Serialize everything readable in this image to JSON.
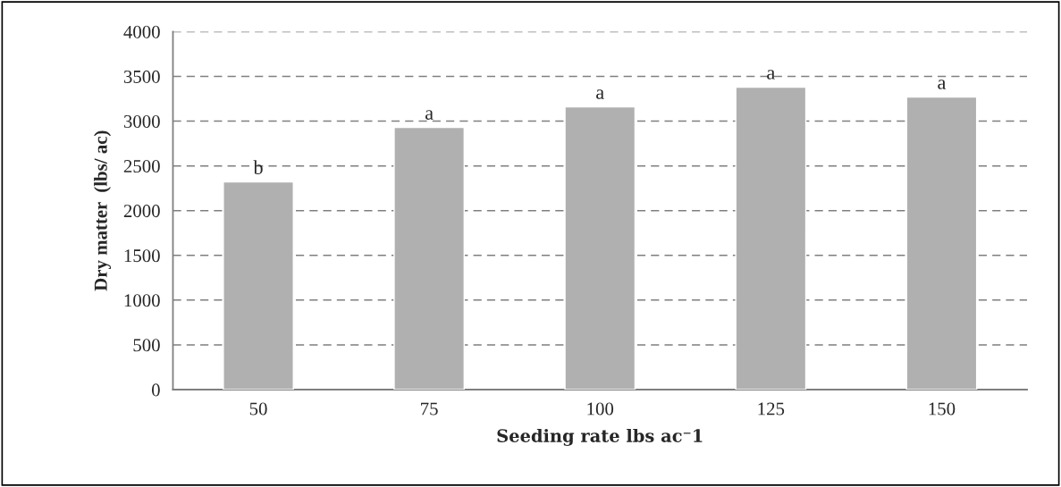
{
  "chart_data": {
    "type": "bar",
    "xlabel": "Seeding rate lbs ac⁻1",
    "ylabel": "Dry matter  (lbs/ ac)",
    "categories": [
      "50",
      "75",
      "100",
      "125",
      "150"
    ],
    "values": [
      2320,
      2930,
      3160,
      3380,
      3270
    ],
    "color": "#b0b0b0",
    "ylim": [
      0,
      4000
    ],
    "yticks": [
      0,
      500,
      1000,
      1500,
      2000,
      2500,
      3000,
      3500,
      4000
    ],
    "grid": "y",
    "legend": false,
    "annotations": [
      {
        "text": "b",
        "x": "50",
        "y": 2320
      },
      {
        "text": "a",
        "x": "75",
        "y": 2930
      },
      {
        "text": "a",
        "x": "100",
        "y": 3160
      },
      {
        "text": "a",
        "x": "125",
        "y": 3380
      },
      {
        "text": "a",
        "x": "150",
        "y": 3270
      }
    ]
  }
}
